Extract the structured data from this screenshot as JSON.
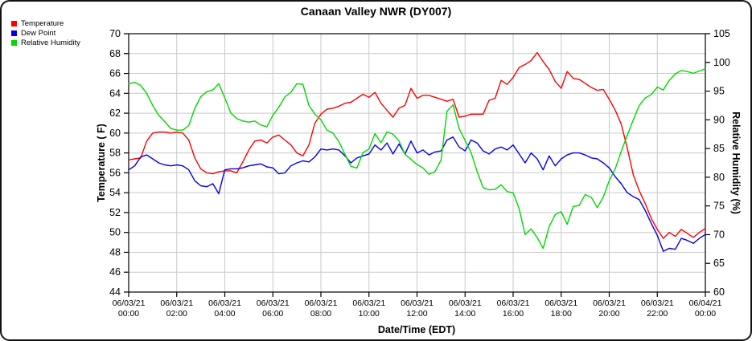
{
  "chart_data": {
    "type": "line",
    "title": "Canaan Valley NWR (DY007)",
    "x_label": "Date/Time (EDT)",
    "y_left_label": "Temperature ( F)",
    "y_right_label": "Relative Humidity (%)",
    "y_left_range": [
      44,
      70
    ],
    "y_left_tick_step": 2,
    "y_right_range": [
      60,
      105
    ],
    "y_right_tick_step": 5,
    "x_range_hours": [
      0,
      24
    ],
    "grid": true,
    "legend_position": "top-left",
    "grid_color": "#c9c9c9",
    "x_start_hour": 0,
    "x_step_hours": 0.25,
    "x_ticks": [
      {
        "hour": 0,
        "date": "06/03/21",
        "time": "00:00"
      },
      {
        "hour": 2,
        "date": "06/03/21",
        "time": "02:00"
      },
      {
        "hour": 4,
        "date": "06/03/21",
        "time": "04:00"
      },
      {
        "hour": 6,
        "date": "06/03/21",
        "time": "06:00"
      },
      {
        "hour": 8,
        "date": "06/03/21",
        "time": "08:00"
      },
      {
        "hour": 10,
        "date": "06/03/21",
        "time": "10:00"
      },
      {
        "hour": 12,
        "date": "06/03/21",
        "time": "12:00"
      },
      {
        "hour": 14,
        "date": "06/03/21",
        "time": "14:00"
      },
      {
        "hour": 16,
        "date": "06/03/21",
        "time": "16:00"
      },
      {
        "hour": 18,
        "date": "06/03/21",
        "time": "18:00"
      },
      {
        "hour": 20,
        "date": "06/03/21",
        "time": "20:00"
      },
      {
        "hour": 22,
        "date": "06/03/21",
        "time": "22:00"
      },
      {
        "hour": 24,
        "date": "06/04/21",
        "time": "00:00"
      }
    ],
    "series": [
      {
        "name": "Temperature",
        "color": "#ff0000",
        "axis": "left",
        "unit": "F",
        "values": [
          57.3,
          57.4,
          57.5,
          59.2,
          60.0,
          60.1,
          60.1,
          60.0,
          60.1,
          60.0,
          59.3,
          57.5,
          56.4,
          56.0,
          55.9,
          56.1,
          56.2,
          56.2,
          56.0,
          57.1,
          58.3,
          59.2,
          59.3,
          59.0,
          59.6,
          59.8,
          59.3,
          58.8,
          58.0,
          57.7,
          58.8,
          61.0,
          61.9,
          62.4,
          62.5,
          62.7,
          63.0,
          63.1,
          63.5,
          63.9,
          63.6,
          64.1,
          63.0,
          62.3,
          61.6,
          62.5,
          62.8,
          64.5,
          63.5,
          63.8,
          63.8,
          63.6,
          63.4,
          63.2,
          63.4,
          61.6,
          61.7,
          61.9,
          61.9,
          61.9,
          63.3,
          63.5,
          65.3,
          64.9,
          65.6,
          66.6,
          66.9,
          67.3,
          68.1,
          67.2,
          66.4,
          65.2,
          64.5,
          66.2,
          65.5,
          65.4,
          65.0,
          64.6,
          64.3,
          64.4,
          63.4,
          62.3,
          60.9,
          58.5,
          55.8,
          54.2,
          52.9,
          51.4,
          50.3,
          49.4,
          50.0,
          49.6,
          50.3,
          49.9,
          49.5,
          50.0,
          50.4
        ]
      },
      {
        "name": "Dew Point",
        "color": "#0000ee",
        "axis": "left",
        "unit": "F",
        "values": [
          56.3,
          56.7,
          57.6,
          57.8,
          57.4,
          57.0,
          56.8,
          56.7,
          56.8,
          56.7,
          56.3,
          55.2,
          54.7,
          54.6,
          54.9,
          53.9,
          56.3,
          56.4,
          56.4,
          56.5,
          56.7,
          56.8,
          56.9,
          56.6,
          56.5,
          55.9,
          56.0,
          56.7,
          57.0,
          57.2,
          57.1,
          57.6,
          58.4,
          58.3,
          58.4,
          58.3,
          57.7,
          57.0,
          57.5,
          57.7,
          57.9,
          58.8,
          58.3,
          59.0,
          57.9,
          58.9,
          57.9,
          59.2,
          58.0,
          58.3,
          57.8,
          58.1,
          58.2,
          59.3,
          59.6,
          58.6,
          58.2,
          59.3,
          59.0,
          58.2,
          57.9,
          58.4,
          58.6,
          58.3,
          58.8,
          57.9,
          57.0,
          58.0,
          57.4,
          56.3,
          57.7,
          56.7,
          57.4,
          57.8,
          58.0,
          58.0,
          57.8,
          57.5,
          57.4,
          57.0,
          56.5,
          55.6,
          54.9,
          54.0,
          53.6,
          53.3,
          52.2,
          50.9,
          49.7,
          48.1,
          48.4,
          48.3,
          49.4,
          49.2,
          48.9,
          49.4,
          49.8
        ]
      },
      {
        "name": "Relative Humidity",
        "color": "#00d800",
        "axis": "right",
        "unit": "%",
        "values": [
          96.3,
          96.5,
          96.0,
          94.6,
          92.5,
          90.8,
          89.7,
          88.5,
          88.2,
          88.2,
          89.0,
          92.0,
          94.0,
          94.9,
          95.2,
          96.3,
          93.8,
          91.2,
          90.2,
          89.8,
          89.6,
          89.8,
          89.1,
          88.8,
          90.8,
          92.2,
          94.0,
          94.8,
          96.3,
          96.2,
          92.5,
          91.0,
          90.0,
          88.2,
          87.7,
          86.2,
          84.0,
          81.9,
          81.6,
          84.3,
          84.9,
          87.6,
          86.0,
          87.9,
          87.5,
          86.3,
          84.0,
          83.1,
          82.2,
          81.6,
          80.5,
          81.0,
          83.0,
          91.5,
          92.6,
          88.5,
          86.4,
          84.3,
          81.0,
          78.2,
          77.8,
          77.9,
          78.7,
          77.5,
          77.3,
          74.5,
          70.0,
          71.0,
          69.5,
          67.6,
          71.4,
          73.5,
          74.0,
          71.8,
          74.9,
          75.1,
          77.0,
          76.5,
          74.7,
          76.5,
          79.4,
          81.5,
          84.5,
          87.3,
          90.0,
          92.5,
          93.8,
          94.4,
          95.7,
          95.2,
          96.9,
          98.0,
          98.6,
          98.4,
          98.1,
          98.5,
          98.9
        ]
      }
    ]
  }
}
